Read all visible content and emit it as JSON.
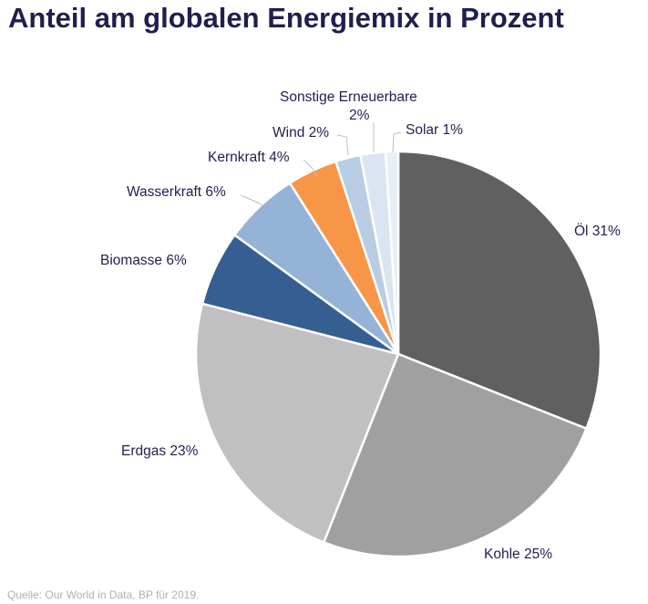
{
  "title": "Anteil am globalen Energiemix in Prozent",
  "source": "Quelle: Our World in Data, BP für 2019.",
  "chart_data": {
    "type": "pie",
    "title": "Anteil am globalen Energiemix in Prozent",
    "slices": [
      {
        "label": "Öl",
        "value": 31,
        "display": "Öl 31%",
        "color": "#606060"
      },
      {
        "label": "Kohle",
        "value": 25,
        "display": "Kohle 25%",
        "color": "#a0a0a0"
      },
      {
        "label": "Erdgas",
        "value": 23,
        "display": "Erdgas 23%",
        "color": "#c0c0c0"
      },
      {
        "label": "Biomasse",
        "value": 6,
        "display": "Biomasse 6%",
        "color": "#365f91"
      },
      {
        "label": "Wasserkraft",
        "value": 6,
        "display": "Wasserkraft 6%",
        "color": "#95b3d7"
      },
      {
        "label": "Kernkraft",
        "value": 4,
        "display": "Kernkraft 4%",
        "color": "#f79646"
      },
      {
        "label": "Wind",
        "value": 2,
        "display": "Wind 2%",
        "color": "#b8cce4"
      },
      {
        "label": "Sonstige Erneuerbare",
        "value": 2,
        "display": [
          "Sonstige Erneuerbare",
          "2%"
        ],
        "color": "#dbe5f1"
      },
      {
        "label": "Solar",
        "value": 1,
        "display": "Solar 1%",
        "color": "#e8eef7"
      }
    ]
  }
}
